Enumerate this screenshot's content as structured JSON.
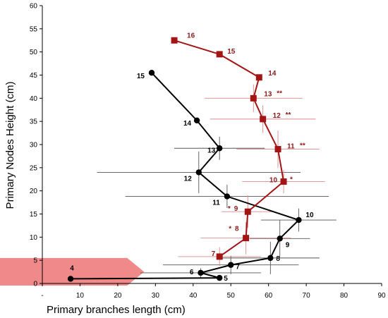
{
  "chart_data": {
    "type": "line",
    "xlabel": "Primary branches length (cm)",
    "ylabel": "Primary Nodes Height (cm)",
    "xlim": [
      0,
      90
    ],
    "ylim": [
      0,
      60
    ],
    "x_ticks": [
      {
        "value": 0,
        "label": "-"
      },
      {
        "value": 10,
        "label": "10"
      },
      {
        "value": 20,
        "label": "20"
      },
      {
        "value": 30,
        "label": "30"
      },
      {
        "value": 40,
        "label": "40"
      },
      {
        "value": 50,
        "label": "50"
      },
      {
        "value": 60,
        "label": "60"
      },
      {
        "value": 70,
        "label": "70"
      },
      {
        "value": 80,
        "label": "80"
      },
      {
        "value": 90,
        "label": "90"
      }
    ],
    "y_ticks": [
      0,
      5,
      10,
      15,
      20,
      25,
      30,
      35,
      40,
      45,
      50,
      55,
      60
    ],
    "grid": false,
    "legend": "none",
    "annotation_arrow": {
      "x_start": 0,
      "x_end": 27,
      "y_low": 0,
      "y_high": 5.5,
      "color": "#f08a8a"
    },
    "series": [
      {
        "color": "#000000",
        "marker": "circle",
        "points": [
          {
            "x": 7.5,
            "y": 1,
            "label": "4",
            "xerr": 0,
            "yerr": 0
          },
          {
            "x": 47,
            "y": 1.2,
            "label": "5",
            "xerr": 0,
            "yerr": 0
          },
          {
            "x": 42,
            "y": 2.3,
            "label": "6",
            "xerr": 16,
            "yerr": 1
          },
          {
            "x": 50,
            "y": 4,
            "label": "7",
            "xerr": 18,
            "yerr": 2
          },
          {
            "x": 60.5,
            "y": 5.5,
            "label": "8",
            "xerr": 13,
            "yerr": 3.5
          },
          {
            "x": 63,
            "y": 9.7,
            "label": "9",
            "xerr": 8,
            "yerr": 4
          },
          {
            "x": 68,
            "y": 13.7,
            "label": "10",
            "xerr": 10,
            "yerr": 2.5
          },
          {
            "x": 49,
            "y": 18.8,
            "label": "11",
            "xerr": 27,
            "yerr": 2.5
          },
          {
            "x": 41.5,
            "y": 24,
            "label": "12",
            "xerr": 27,
            "yerr": 4.5
          },
          {
            "x": 47,
            "y": 29.2,
            "label": "13",
            "xerr": 12,
            "yerr": 2.5
          },
          {
            "x": 41,
            "y": 35.2,
            "label": "14",
            "xerr": 0,
            "yerr": 0
          },
          {
            "x": 29,
            "y": 45.5,
            "label": "15",
            "xerr": 0,
            "yerr": 0
          }
        ]
      },
      {
        "color": "#a31515",
        "marker": "square",
        "points": [
          {
            "x": 47,
            "y": 5.8,
            "label": "7",
            "sig": "",
            "xerr": 11,
            "yerr": 2
          },
          {
            "x": 54,
            "y": 9.8,
            "label": "8",
            "sig": "*",
            "xerr": 12,
            "yerr": 3.5
          },
          {
            "x": 54.5,
            "y": 15.5,
            "label": "9",
            "sig": "*",
            "xerr": 7,
            "yerr": 3.5
          },
          {
            "x": 64,
            "y": 22,
            "label": "10",
            "sig": "*",
            "xerr": 11,
            "yerr": 2.5
          },
          {
            "x": 62.5,
            "y": 29,
            "label": "11",
            "sig": "**",
            "xerr": 11,
            "yerr": 4
          },
          {
            "x": 58.5,
            "y": 35.5,
            "label": "12",
            "sig": "**",
            "xerr": 14,
            "yerr": 3
          },
          {
            "x": 56,
            "y": 40,
            "label": "13",
            "sig": "**",
            "xerr": 13,
            "yerr": 3
          },
          {
            "x": 57.5,
            "y": 44.5,
            "label": "14",
            "sig": "",
            "xerr": 0,
            "yerr": 0
          },
          {
            "x": 47,
            "y": 49.5,
            "label": "15",
            "sig": "",
            "xerr": 0,
            "yerr": 0
          },
          {
            "x": 35,
            "y": 52.5,
            "label": "16",
            "sig": "",
            "xerr": 0,
            "yerr": 0
          }
        ]
      }
    ]
  }
}
